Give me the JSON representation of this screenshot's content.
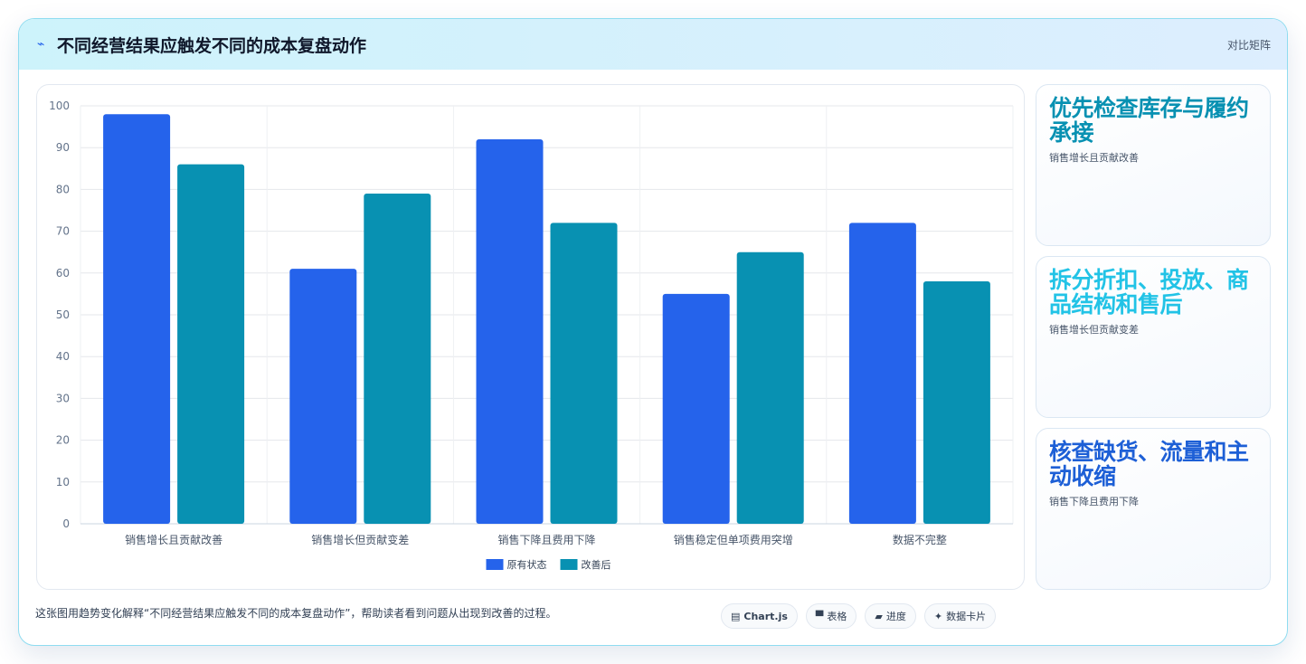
{
  "header": {
    "icon": "trend-icon",
    "title": "不同经营结果应触发不同的成本复盘动作",
    "tag": "对比矩阵"
  },
  "chart_data": {
    "type": "bar",
    "categories": [
      "销售增长且贡献改善",
      "销售增长但贡献变差",
      "销售下降且费用下降",
      "销售稳定但单项费用突增",
      "数据不完整"
    ],
    "series": [
      {
        "name": "原有状态",
        "values": [
          98,
          61,
          92,
          55,
          72
        ],
        "color": "#2563eb"
      },
      {
        "name": "改善后",
        "values": [
          86,
          79,
          72,
          65,
          58
        ],
        "color": "#0891b2"
      }
    ],
    "yticks": [
      0,
      10,
      20,
      30,
      40,
      50,
      60,
      70,
      80,
      90,
      100
    ],
    "ylim": [
      0,
      100
    ],
    "grid": true,
    "legend": "bottom"
  },
  "cards": [
    {
      "title": "优先检查库存与履约承接",
      "subtitle": "销售增长且贡献改善",
      "color": "#0891b2"
    },
    {
      "title": "拆分折扣、投放、商品结构和售后",
      "subtitle": "销售增长但贡献变差",
      "color": "#22c3e6"
    },
    {
      "title": "核查缺货、流量和主动收缩",
      "subtitle": "销售下降且费用下降",
      "color": "#1d5fd6"
    }
  ],
  "footer": {
    "description": "这张图用趋势变化解释“不同经营结果应触发不同的成本复盘动作”，帮助读者看到问题从出现到改善的过程。",
    "pills": [
      {
        "icon": "▤",
        "label": "Chart.js",
        "bold": true
      },
      {
        "icon": "▀",
        "label": "表格",
        "bold": false
      },
      {
        "icon": "▰",
        "label": "进度",
        "bold": false
      },
      {
        "icon": "✦",
        "label": "数据卡片",
        "bold": false
      }
    ]
  }
}
